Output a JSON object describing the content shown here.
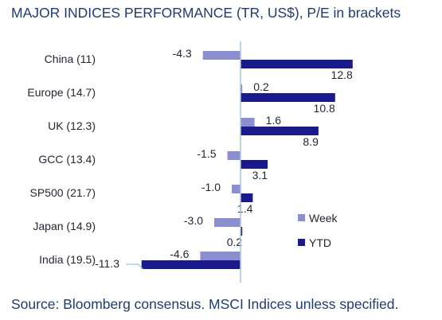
{
  "title": "MAJOR INDICES PERFORMANCE (TR, US$), P/E in brackets",
  "source": "Source: Bloomberg consensus. MSCI Indices unless specified.",
  "colors": {
    "week": "#8c8fcf",
    "ytd": "#1a1a8c",
    "axis": "#a8c4e0",
    "text": "#1f3c6e"
  },
  "chart_data": {
    "type": "bar",
    "orientation": "horizontal",
    "title": "MAJOR INDICES PERFORMANCE (TR, US$), P/E in brackets",
    "categories": [
      "China (11)",
      "Europe (14.7)",
      "UK (12.3)",
      "GCC (13.4)",
      "SP500 (21.7)",
      "Japan (14.9)",
      "India (19.5)"
    ],
    "series": [
      {
        "name": "Week",
        "values": [
          -4.3,
          0.2,
          1.6,
          -1.5,
          -1.0,
          -3.0,
          -4.6
        ]
      },
      {
        "name": "YTD",
        "values": [
          12.8,
          10.8,
          8.9,
          3.1,
          1.4,
          0.2,
          -11.3
        ]
      }
    ],
    "legend_position": "right",
    "grid": false
  }
}
